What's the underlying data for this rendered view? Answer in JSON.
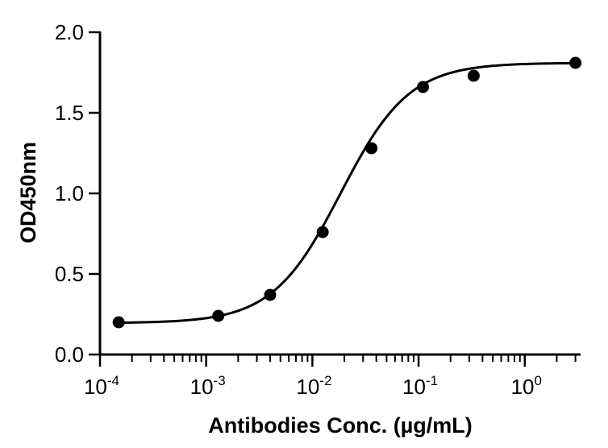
{
  "chart_data": {
    "type": "scatter",
    "xlabel": "Antibodies Conc. (µg/mL)",
    "ylabel": "OD450nm",
    "xscale": "log",
    "xlim": [
      0.0001,
      5
    ],
    "ylim": [
      0,
      2.0
    ],
    "yticks": [
      {
        "value": 0,
        "label": "0.0"
      },
      {
        "value": 0.5,
        "label": "0.5"
      },
      {
        "value": 1.0,
        "label": "1.0"
      },
      {
        "value": 1.5,
        "label": "1.5"
      },
      {
        "value": 2.0,
        "label": "2.0"
      }
    ],
    "xticks": [
      {
        "value": 0.0001,
        "base": "10",
        "exp": "-4"
      },
      {
        "value": 0.001,
        "base": "10",
        "exp": "-3"
      },
      {
        "value": 0.01,
        "base": "10",
        "exp": "-2"
      },
      {
        "value": 0.1,
        "base": "10",
        "exp": "-1"
      },
      {
        "value": 1,
        "base": "10",
        "exp": "0"
      }
    ],
    "points": [
      {
        "x": 0.00015,
        "y": 0.2
      },
      {
        "x": 0.0013,
        "y": 0.24
      },
      {
        "x": 0.004,
        "y": 0.37
      },
      {
        "x": 0.0125,
        "y": 0.76
      },
      {
        "x": 0.036,
        "y": 1.28
      },
      {
        "x": 0.11,
        "y": 1.66
      },
      {
        "x": 0.33,
        "y": 1.73
      },
      {
        "x": 3.0,
        "y": 1.81
      }
    ],
    "fit": {
      "model": "4PL",
      "bottom": 0.195,
      "top": 1.81,
      "ec50": 0.0185,
      "hill": 1.35
    },
    "grid": false,
    "legend": "none"
  }
}
